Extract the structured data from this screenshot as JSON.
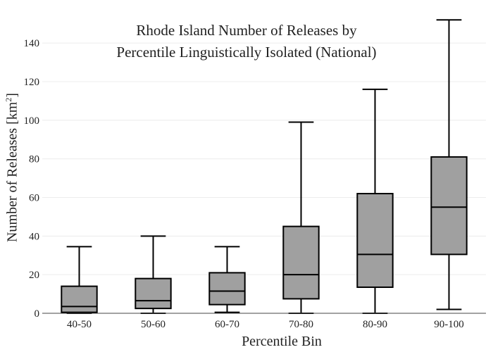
{
  "chart_data": {
    "type": "box",
    "title": [
      "Rhode Island Number of Releases by",
      "Percentile Linguistically Isolated (National)"
    ],
    "xlabel": "Percentile Bin",
    "ylabel": {
      "text": "Number of Releases  [km",
      "sup": "2",
      "tail": "]"
    },
    "ylim": [
      0,
      155
    ],
    "yticks": [
      0,
      20,
      40,
      60,
      80,
      100,
      120,
      140
    ],
    "grid": true,
    "box_color": "#a0a0a0",
    "categories": [
      "40-50",
      "50-60",
      "60-70",
      "70-80",
      "80-90",
      "90-100"
    ],
    "boxes": [
      {
        "category": "40-50",
        "min": 0,
        "q1": 0.5,
        "median": 3.5,
        "q3": 14,
        "max": 34.5
      },
      {
        "category": "50-60",
        "min": 0,
        "q1": 2.5,
        "median": 6.5,
        "q3": 18,
        "max": 40
      },
      {
        "category": "60-70",
        "min": 0.5,
        "q1": 4.5,
        "median": 11.5,
        "q3": 21,
        "max": 34.5
      },
      {
        "category": "70-80",
        "min": 0,
        "q1": 7.5,
        "median": 20,
        "q3": 45,
        "max": 99
      },
      {
        "category": "80-90",
        "min": 0,
        "q1": 13.5,
        "median": 30.5,
        "q3": 62,
        "max": 116
      },
      {
        "category": "90-100",
        "min": 2,
        "q1": 30.5,
        "median": 55,
        "q3": 81,
        "max": 152
      }
    ]
  }
}
